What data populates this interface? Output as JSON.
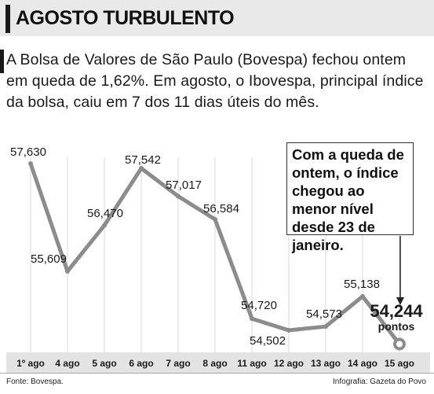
{
  "header": {
    "title": "AGOSTO TURBULENTO"
  },
  "intro": {
    "text": "A Bolsa de Valores de São Paulo (Bovespa) fechou ontem em queda de 1,62%. Em agosto, o Ibovespa, principal índice da bolsa, caiu em 7 dos 11 dias úteis do mês."
  },
  "callout": {
    "text": "Com a queda de ontem, o índice chegou ao menor nível desde 23 de janeiro."
  },
  "footer": {
    "source": "Fonte: Bovespa.",
    "credit": "Infografia: Gazeta do Povo"
  },
  "colors": {
    "line": "#8c8c8c",
    "grid": "#d9d9d9",
    "axis_band": "#e3e3e3",
    "text": "#1a1a1a"
  },
  "chart_data": {
    "type": "line",
    "categories": [
      "1º ago",
      "4 ago",
      "5 ago",
      "6 ago",
      "7 ago",
      "8 ago",
      "11 ago",
      "12 ago",
      "13 ago",
      "14 ago",
      "15 ago"
    ],
    "values": [
      57630,
      55609,
      56470,
      57542,
      57017,
      56584,
      54720,
      54502,
      54573,
      55138,
      54244
    ],
    "value_labels": [
      "57,630",
      "55,609",
      "56,470",
      "57,542",
      "57,017",
      "56,584",
      "54,720",
      "54,502",
      "54,573",
      "55,138",
      "54,244"
    ],
    "last_unit": "pontos",
    "ylim": [
      54000,
      58000
    ],
    "grid": "vertical"
  }
}
